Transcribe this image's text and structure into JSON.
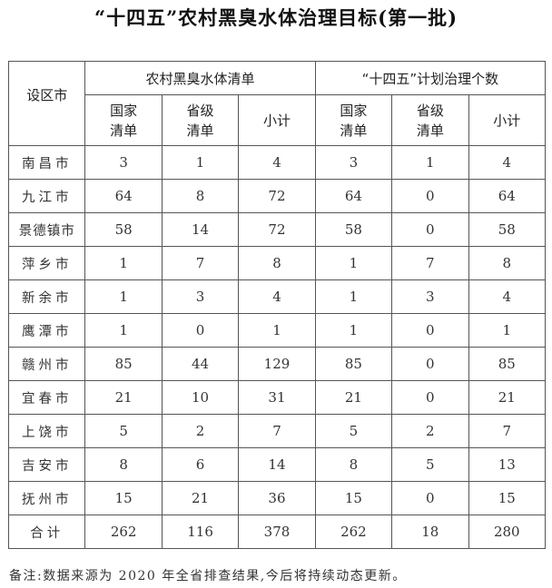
{
  "title": "“十四五”农村黑臭水体治理目标(第一批)",
  "table": {
    "corner_header": "设区市",
    "group_headers": [
      "农村黑臭水体清单",
      "“十四五”计划治理个数"
    ],
    "sub_headers": [
      [
        "国家",
        "清单"
      ],
      [
        "省级",
        "清单"
      ],
      [
        "小计",
        ""
      ],
      [
        "国家",
        "清单"
      ],
      [
        "省级",
        "清单"
      ],
      [
        "小计",
        ""
      ]
    ],
    "rows": [
      {
        "city": "南昌市",
        "values": [
          "3",
          "1",
          "4",
          "3",
          "1",
          "4"
        ]
      },
      {
        "city": "九江市",
        "values": [
          "64",
          "8",
          "72",
          "64",
          "0",
          "64"
        ]
      },
      {
        "city": "景德镇市",
        "values": [
          "58",
          "14",
          "72",
          "58",
          "0",
          "58"
        ]
      },
      {
        "city": "萍乡市",
        "values": [
          "1",
          "7",
          "8",
          "1",
          "7",
          "8"
        ]
      },
      {
        "city": "新余市",
        "values": [
          "1",
          "3",
          "4",
          "1",
          "3",
          "4"
        ]
      },
      {
        "city": "鹰潭市",
        "values": [
          "1",
          "0",
          "1",
          "1",
          "0",
          "1"
        ]
      },
      {
        "city": "赣州市",
        "values": [
          "85",
          "44",
          "129",
          "85",
          "0",
          "85"
        ]
      },
      {
        "city": "宜春市",
        "values": [
          "21",
          "10",
          "31",
          "21",
          "0",
          "21"
        ]
      },
      {
        "city": "上饶市",
        "values": [
          "5",
          "2",
          "7",
          "5",
          "2",
          "7"
        ]
      },
      {
        "city": "吉安市",
        "values": [
          "8",
          "6",
          "14",
          "8",
          "5",
          "13"
        ]
      },
      {
        "city": "抚州市",
        "values": [
          "15",
          "21",
          "36",
          "15",
          "0",
          "15"
        ]
      },
      {
        "city": "合计",
        "values": [
          "262",
          "116",
          "378",
          "262",
          "18",
          "280"
        ]
      }
    ]
  },
  "note": "备注:数据来源为 2020 年全省排查结果,今后将持续动态更新。"
}
